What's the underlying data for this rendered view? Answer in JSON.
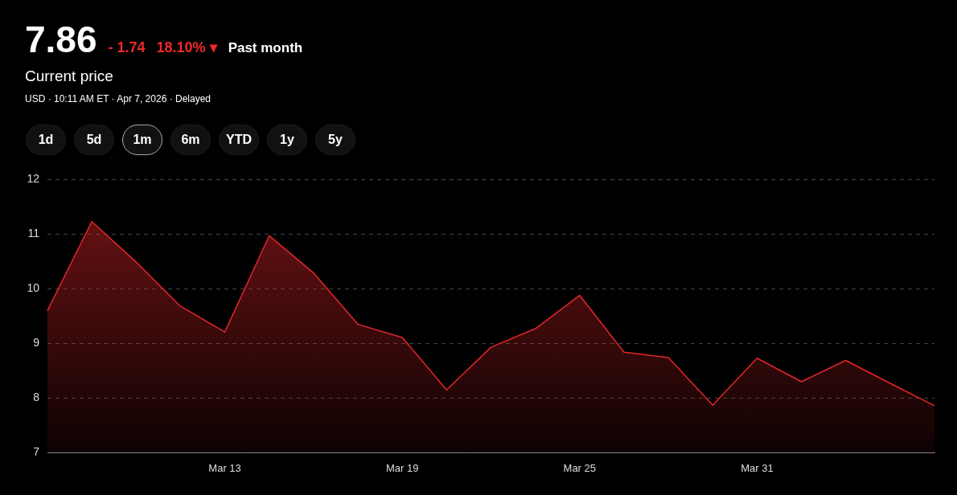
{
  "chart_data": {
    "type": "area",
    "title": "7.86",
    "subtitle": "Current price",
    "annotations": [
      "- 1.74",
      "18.10% ▾",
      "Past month",
      "USD · 10:11 AM ET · Apr 7, 2026 · Delayed",
      "1d",
      "5d",
      "1m",
      "6m",
      "YTD",
      "1y",
      "5y"
    ],
    "categories": [
      null,
      null,
      null,
      null,
      "Mar 13",
      null,
      null,
      null,
      "Mar 19",
      null,
      null,
      null,
      "Mar 25",
      null,
      null,
      null,
      "Mar 31",
      null,
      null,
      null,
      null
    ],
    "series": [
      {
        "color": "#e3262a",
        "values": [
          9.6,
          11.23,
          10.49,
          9.68,
          9.21,
          10.97,
          10.29,
          9.35,
          9.11,
          8.15,
          8.93,
          9.27,
          9.88,
          8.84,
          8.74,
          7.87,
          8.73,
          8.3,
          8.69,
          8.27,
          7.86
        ]
      }
    ],
    "ylim": [
      7,
      12
    ],
    "yticks": [
      7,
      8,
      9,
      10,
      11,
      12
    ],
    "grid": "y",
    "legend": false,
    "marker": "none",
    "line_style": "solid"
  }
}
